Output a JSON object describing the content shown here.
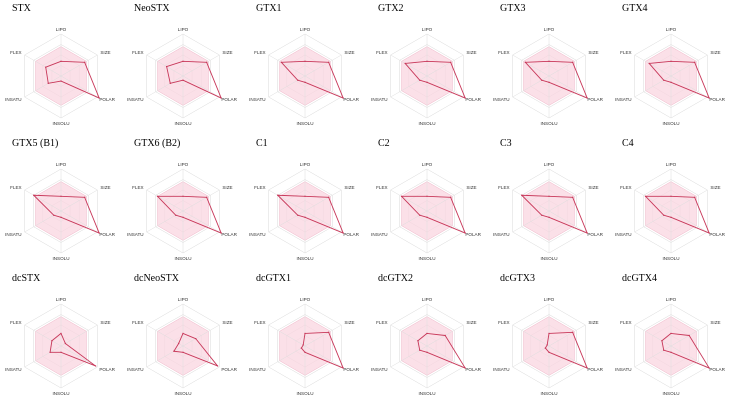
{
  "axes": [
    "LIPO",
    "SIZE",
    "POLAR",
    "INSOLU",
    "INSATU",
    "FLEX"
  ],
  "colors": {
    "zone": "#f9d5e0",
    "zone_stroke": "#f0b7c9",
    "ring": "#d9d9d9",
    "spoke": "#dedede",
    "line": "#c8385a",
    "label": "#333333"
  },
  "chart_data": [
    {
      "type": "radar",
      "title": "STX",
      "values": [
        0.35,
        0.65,
        1.05,
        0.12,
        0.35,
        0.42
      ]
    },
    {
      "type": "radar",
      "title": "NeoSTX",
      "values": [
        0.35,
        0.65,
        1.05,
        0.1,
        0.35,
        0.45
      ]
    },
    {
      "type": "radar",
      "title": "GTX1",
      "values": [
        0.35,
        0.65,
        1.05,
        0.15,
        0.2,
        0.65
      ]
    },
    {
      "type": "radar",
      "title": "GTX2",
      "values": [
        0.35,
        0.65,
        1.05,
        0.15,
        0.2,
        0.6
      ]
    },
    {
      "type": "radar",
      "title": "GTX3",
      "values": [
        0.35,
        0.65,
        1.05,
        0.15,
        0.2,
        0.65
      ]
    },
    {
      "type": "radar",
      "title": "GTX4",
      "values": [
        0.35,
        0.65,
        1.05,
        0.15,
        0.2,
        0.6
      ]
    },
    {
      "type": "radar",
      "title": "GTX5 (B1)",
      "values": [
        0.35,
        0.65,
        1.05,
        0.15,
        0.2,
        0.75
      ]
    },
    {
      "type": "radar",
      "title": "GTX6 (B2)",
      "values": [
        0.35,
        0.65,
        1.05,
        0.15,
        0.2,
        0.7
      ]
    },
    {
      "type": "radar",
      "title": "C1",
      "values": [
        0.35,
        0.65,
        1.05,
        0.15,
        0.2,
        0.75
      ]
    },
    {
      "type": "radar",
      "title": "C2",
      "values": [
        0.35,
        0.65,
        1.05,
        0.15,
        0.2,
        0.7
      ]
    },
    {
      "type": "radar",
      "title": "C3",
      "values": [
        0.35,
        0.65,
        1.05,
        0.15,
        0.2,
        0.75
      ]
    },
    {
      "type": "radar",
      "title": "C4",
      "values": [
        0.35,
        0.65,
        1.05,
        0.15,
        0.2,
        0.7
      ]
    },
    {
      "type": "radar",
      "title": "dcSTX",
      "values": [
        0.3,
        0.12,
        0.95,
        0.15,
        0.3,
        0.25
      ]
    },
    {
      "type": "radar",
      "title": "dcNeoSTX",
      "values": [
        0.3,
        0.35,
        0.95,
        0.15,
        0.25,
        0.12
      ]
    },
    {
      "type": "radar",
      "title": "dcGTX1",
      "values": [
        0.3,
        0.65,
        1.05,
        0.15,
        0.1,
        0.05
      ]
    },
    {
      "type": "radar",
      "title": "dcGTX2",
      "values": [
        0.3,
        0.5,
        1.05,
        0.15,
        0.2,
        0.25
      ]
    },
    {
      "type": "radar",
      "title": "dcGTX3",
      "values": [
        0.3,
        0.65,
        1.05,
        0.15,
        0.1,
        0.05
      ]
    },
    {
      "type": "radar",
      "title": "dcGTX4",
      "values": [
        0.3,
        0.5,
        1.05,
        0.15,
        0.2,
        0.25
      ]
    }
  ]
}
